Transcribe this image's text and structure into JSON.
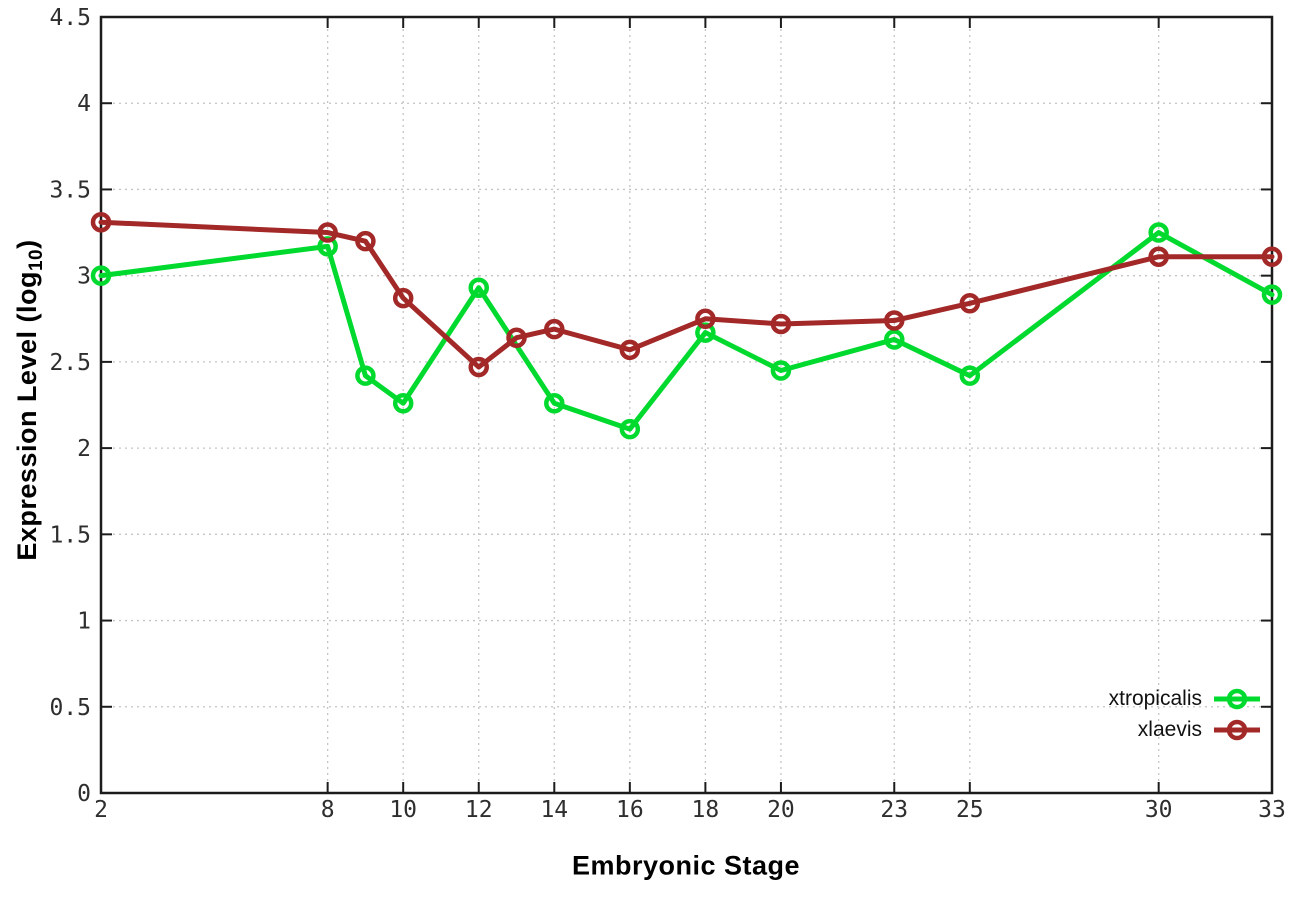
{
  "chart_data": {
    "type": "line",
    "title": "",
    "xlabel": "Embryonic Stage",
    "ylabel_prefix": "Expression Level (log",
    "ylabel_sub": "10",
    "ylabel_suffix": ")",
    "xlim": [
      2,
      33
    ],
    "ylim": [
      0,
      4.5
    ],
    "x_ticks": [
      2,
      8,
      10,
      12,
      14,
      16,
      18,
      20,
      23,
      25,
      30,
      33
    ],
    "y_ticks": [
      0,
      0.5,
      1,
      1.5,
      2,
      2.5,
      3,
      3.5,
      4,
      4.5
    ],
    "grid": true,
    "legend_position": "bottom-right-inside",
    "marker": "open-circle",
    "colors": {
      "background": "#ffffff",
      "border": "#1c1c1c",
      "grid": "#c4c4c4",
      "tick_text": "#2e2e2e"
    },
    "series": [
      {
        "name": "xtropicalis",
        "color": "#00d92e",
        "x": [
          2,
          8,
          9,
          10,
          12,
          14,
          16,
          18,
          20,
          23,
          25,
          30,
          33
        ],
        "y": [
          3.0,
          3.17,
          2.42,
          2.26,
          2.93,
          2.26,
          2.11,
          2.67,
          2.45,
          2.63,
          2.42,
          3.25,
          2.89
        ]
      },
      {
        "name": "xlaevis",
        "color": "#a32828",
        "x": [
          2,
          8,
          9,
          10,
          12,
          13,
          14,
          16,
          18,
          20,
          23,
          25,
          30,
          33
        ],
        "y": [
          3.31,
          3.25,
          3.2,
          2.87,
          2.47,
          2.64,
          2.69,
          2.57,
          2.75,
          2.72,
          2.74,
          2.84,
          3.11,
          3.11
        ]
      }
    ]
  }
}
